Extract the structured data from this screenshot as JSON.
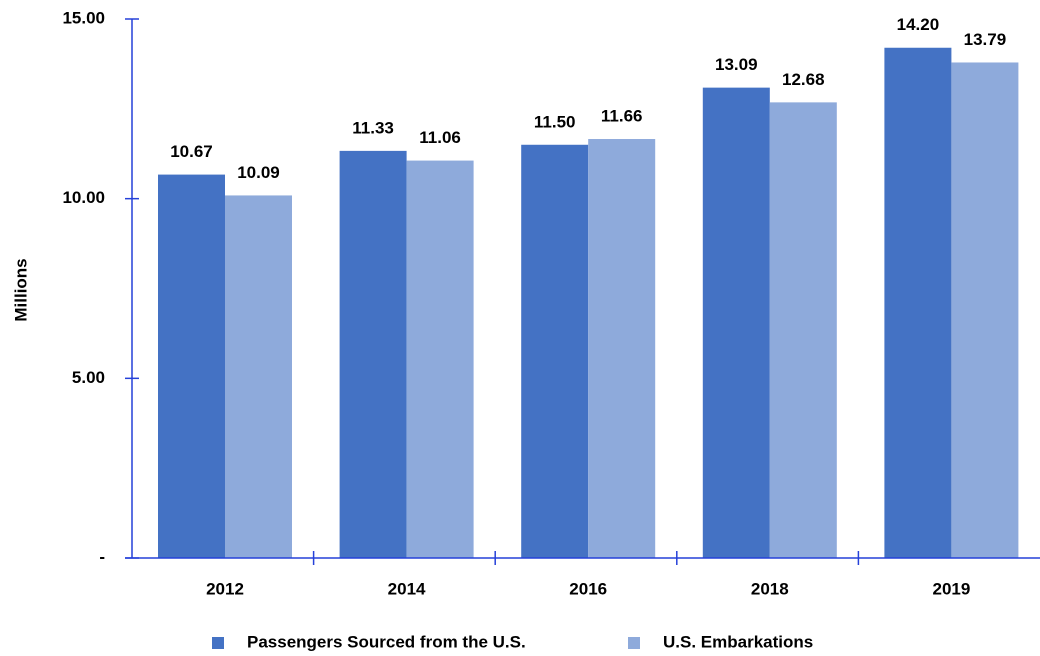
{
  "chart_data": {
    "type": "bar",
    "y_label": "Millions",
    "categories": [
      "2012",
      "2014",
      "2016",
      "2018",
      "2019"
    ],
    "series": [
      {
        "name": "Passengers Sourced from the U.S.",
        "color": "#4472c4",
        "values": [
          10.67,
          11.33,
          11.5,
          13.09,
          14.2
        ],
        "value_labels": [
          "10.67",
          "11.33",
          "11.50",
          "13.09",
          "14.20"
        ]
      },
      {
        "name": "U.S. Embarkations",
        "color": "#8eaadb",
        "values": [
          10.09,
          11.06,
          11.66,
          12.68,
          13.79
        ],
        "value_labels": [
          "10.09",
          "11.06",
          "11.66",
          "12.68",
          "13.79"
        ]
      }
    ],
    "ylim": [
      0,
      15
    ],
    "yticks": [
      {
        "value": 0,
        "label": "-"
      },
      {
        "value": 5,
        "label": "5.00"
      },
      {
        "value": 10,
        "label": "10.00"
      },
      {
        "value": 15,
        "label": "15.00"
      }
    ],
    "legend": "bottom"
  }
}
